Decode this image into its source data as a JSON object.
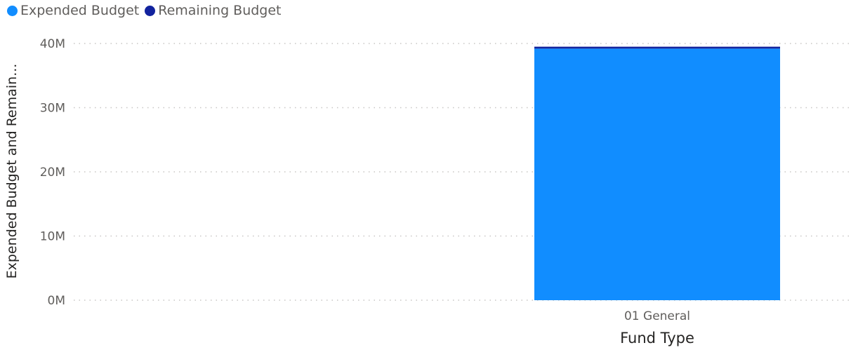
{
  "chart_data": {
    "type": "bar",
    "stacked": true,
    "categories": [
      "01 General"
    ],
    "series": [
      {
        "name": "Expended Budget",
        "color": "#118dff",
        "values": [
          39.2
        ]
      },
      {
        "name": "Remaining Budget",
        "color": "#12239e",
        "values": [
          0.3
        ]
      }
    ],
    "yticks": [
      "0M",
      "10M",
      "20M",
      "30M",
      "40M"
    ],
    "ylim": [
      0,
      40
    ],
    "xlabel": "Fund Type",
    "ylabel": "Expended Budget and Remain...",
    "grid": "dotted",
    "legend_position": "top-left"
  }
}
